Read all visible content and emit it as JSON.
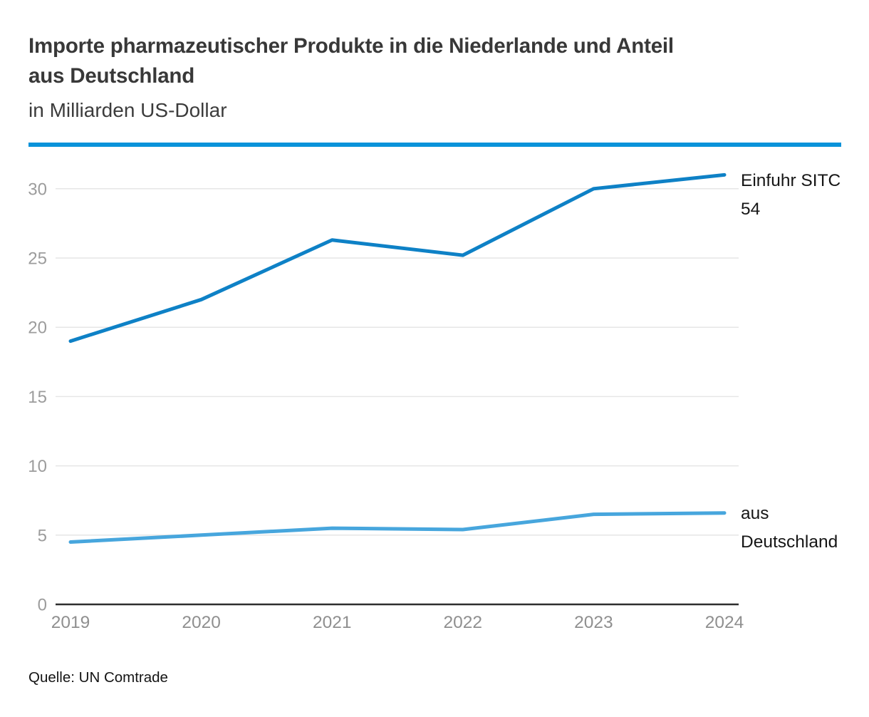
{
  "header": {
    "title": "Importe pharmazeutischer Produkte in die Niederlande und Anteil aus Deutschland",
    "title_line1": "Importe pharmazeutischer Produkte in die Niederlande und Anteil",
    "title_line2": "aus Deutschland",
    "subtitle": "in Milliarden US-Dollar"
  },
  "colors": {
    "separator_blue": "#0a93da",
    "series1_blue": "#0e81c6",
    "series2_lightblue": "#47a6dd",
    "gridline": "#e6e6e6",
    "axis": "#2e2e2e",
    "tick_text": "#9c9c9c"
  },
  "chart_data": {
    "type": "line",
    "title": "Importe pharmazeutischer Produkte in die Niederlande und Anteil aus Deutschland",
    "subtitle": "in Milliarden US-Dollar",
    "x": [
      2019,
      2020,
      2021,
      2022,
      2023,
      2024
    ],
    "series": [
      {
        "name": "Einfuhr SITC 54",
        "label_lines": [
          "Einfuhr SITC",
          "54"
        ],
        "color": "#0e81c6",
        "values": [
          19.0,
          22.0,
          26.3,
          25.2,
          30.0,
          31.0
        ]
      },
      {
        "name": "aus Deutschland",
        "label_lines": [
          "aus",
          "Deutschland"
        ],
        "color": "#47a6dd",
        "values": [
          4.5,
          5.0,
          5.5,
          5.4,
          6.5,
          6.6
        ]
      }
    ],
    "xlabel": "",
    "ylabel": "",
    "ylim": [
      0,
      32
    ],
    "yticks": [
      0,
      5,
      10,
      15,
      20,
      25,
      30
    ],
    "grid": true,
    "legend_position": "right-of-line-ends"
  },
  "source": {
    "label": "Quelle: UN Comtrade"
  }
}
